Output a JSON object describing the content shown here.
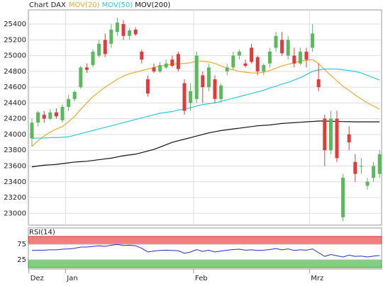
{
  "chart_data": [
    {
      "type": "candlestick",
      "title": "Chart DAX",
      "categories": [
        "Dez",
        null,
        null,
        null,
        null,
        null,
        "Jan",
        null,
        null,
        null,
        null,
        null,
        null,
        null,
        null,
        null,
        null,
        null,
        null,
        null,
        null,
        null,
        null,
        null,
        null,
        null,
        null,
        "Feb",
        null,
        null,
        null,
        null,
        null,
        null,
        null,
        null,
        null,
        null,
        null,
        null,
        null,
        null,
        null,
        null,
        null,
        null,
        "Mrz",
        null,
        null,
        null,
        null,
        null,
        null,
        null,
        null,
        null,
        null,
        null
      ],
      "open": [
        23950,
        24150,
        24250,
        24200,
        24280,
        24180,
        24350,
        24450,
        24600,
        24850,
        24880,
        25000,
        25200,
        25150,
        25300,
        25400,
        25250,
        25330,
        25050,
        24700,
        24850,
        24800,
        24850,
        24950,
        25020,
        24650,
        24400,
        24450,
        24750,
        24600,
        24700,
        24450,
        24800,
        24850,
        25000,
        24900,
        25100,
        24980,
        24800,
        24900,
        25100,
        25200,
        25000,
        25000,
        24900,
        25050,
        25100,
        24700,
        24200,
        23800,
        24200,
        22950,
        24000,
        23650,
        23600,
        23350,
        23450,
        23500
      ],
      "high": [
        24200,
        24300,
        24300,
        24320,
        24330,
        24380,
        24500,
        24560,
        24870,
        24900,
        25080,
        25200,
        25280,
        25400,
        25480,
        25450,
        25350,
        25360,
        25080,
        24750,
        24900,
        24920,
        24950,
        25000,
        25050,
        24700,
        24650,
        25050,
        24800,
        24900,
        24750,
        24650,
        24900,
        25050,
        25080,
        24950,
        25150,
        25000,
        24900,
        25100,
        25300,
        25300,
        25250,
        25100,
        25100,
        25100,
        25400,
        24900,
        24250,
        24300,
        24300,
        23500,
        24100,
        23750,
        23700,
        23450,
        23650,
        23800
      ],
      "low": [
        23850,
        24100,
        24150,
        24180,
        24200,
        24150,
        24300,
        24420,
        24580,
        24780,
        24850,
        24980,
        24980,
        25100,
        25250,
        25200,
        25200,
        25250,
        24900,
        24480,
        24780,
        24780,
        24830,
        24850,
        24800,
        24250,
        24300,
        24400,
        24400,
        24550,
        24400,
        24400,
        24750,
        24820,
        24950,
        24850,
        24900,
        24750,
        24750,
        24850,
        25050,
        25000,
        24950,
        24850,
        24880,
        24850,
        25050,
        24550,
        23600,
        23750,
        23650,
        22900,
        23800,
        23400,
        23500,
        23300,
        23400,
        23450
      ],
      "close": [
        24150,
        24280,
        24200,
        24280,
        24230,
        24350,
        24450,
        24540,
        24850,
        24820,
        25050,
        25150,
        25020,
        25330,
        25420,
        25250,
        25320,
        25270,
        24950,
        24520,
        24800,
        24880,
        24900,
        24870,
        24830,
        24300,
        24550,
        25000,
        24600,
        24850,
        24450,
        24620,
        24850,
        25000,
        25050,
        24870,
        24920,
        24800,
        24880,
        25050,
        25250,
        25030,
        25200,
        24900,
        25050,
        24950,
        25280,
        24600,
        23800,
        24200,
        23700,
        23450,
        23900,
        23500,
        23600,
        23400,
        23600,
        23750
      ],
      "up_color": "#5cb85c",
      "down_color": "#e03b3b",
      "series": [
        {
          "name": "MOV(20)",
          "color": "#f0a830",
          "values": [
            23850,
            23920,
            23980,
            24030,
            24070,
            24100,
            24160,
            24230,
            24320,
            24400,
            24480,
            24540,
            24600,
            24650,
            24700,
            24740,
            24770,
            24790,
            24810,
            24830,
            24850,
            24870,
            24880,
            24890,
            24900,
            24900,
            24910,
            24930,
            24930,
            24920,
            24900,
            24870,
            24840,
            24820,
            24800,
            24790,
            24780,
            24780,
            24790,
            24810,
            24840,
            24870,
            24890,
            24910,
            24930,
            24940,
            24950,
            24900,
            24820,
            24750,
            24680,
            24610,
            24560,
            24500,
            24450,
            24400,
            24360,
            24320
          ]
        },
        {
          "name": "MOV(50)",
          "color": "#30c8e0",
          "values": [
            23950,
            23955,
            23955,
            23960,
            23960,
            23965,
            23970,
            23990,
            24010,
            24030,
            24050,
            24070,
            24090,
            24110,
            24130,
            24150,
            24170,
            24190,
            24210,
            24230,
            24250,
            24270,
            24280,
            24290,
            24310,
            24320,
            24340,
            24360,
            24380,
            24390,
            24400,
            24420,
            24440,
            24460,
            24480,
            24500,
            24520,
            24540,
            24560,
            24590,
            24610,
            24640,
            24660,
            24690,
            24720,
            24760,
            24800,
            24820,
            24830,
            24830,
            24830,
            24820,
            24810,
            24800,
            24780,
            24750,
            24720,
            24690
          ]
        },
        {
          "name": "MOV(200)",
          "color": "#111111",
          "values": [
            23590,
            23600,
            23610,
            23615,
            23620,
            23630,
            23640,
            23650,
            23655,
            23660,
            23670,
            23680,
            23690,
            23700,
            23715,
            23730,
            23740,
            23750,
            23770,
            23790,
            23810,
            23840,
            23870,
            23900,
            23920,
            23940,
            23960,
            23980,
            24000,
            24020,
            24035,
            24050,
            24060,
            24070,
            24080,
            24090,
            24100,
            24110,
            24115,
            24120,
            24130,
            24140,
            24145,
            24150,
            24155,
            24160,
            24165,
            24170,
            24170,
            24168,
            24165,
            24163,
            24162,
            24160,
            24160,
            24160,
            24160,
            24160
          ]
        }
      ],
      "ylim": [
        22850,
        25580
      ],
      "yticks": [
        23000,
        23200,
        23400,
        23600,
        23800,
        24000,
        24200,
        24400,
        24600,
        24800,
        25000,
        25200,
        25400
      ],
      "grid": true
    },
    {
      "type": "line",
      "title": "RSI(14)",
      "color": "#2030c0",
      "values": [
        55,
        56,
        56,
        57,
        57,
        59,
        60,
        62,
        66,
        66,
        68,
        70,
        68,
        72,
        74,
        71,
        72,
        70,
        62,
        50,
        53,
        55,
        56,
        55,
        54,
        46,
        50,
        58,
        52,
        56,
        50,
        53,
        56,
        58,
        59,
        56,
        57,
        55,
        56,
        58,
        61,
        57,
        60,
        55,
        57,
        56,
        60,
        48,
        36,
        42,
        38,
        34,
        40,
        36,
        37,
        34,
        37,
        39
      ],
      "ylim": [
        0,
        100
      ],
      "yticks": [
        25,
        75
      ],
      "band_colors": [
        "#f08080",
        "#80d080"
      ]
    }
  ]
}
